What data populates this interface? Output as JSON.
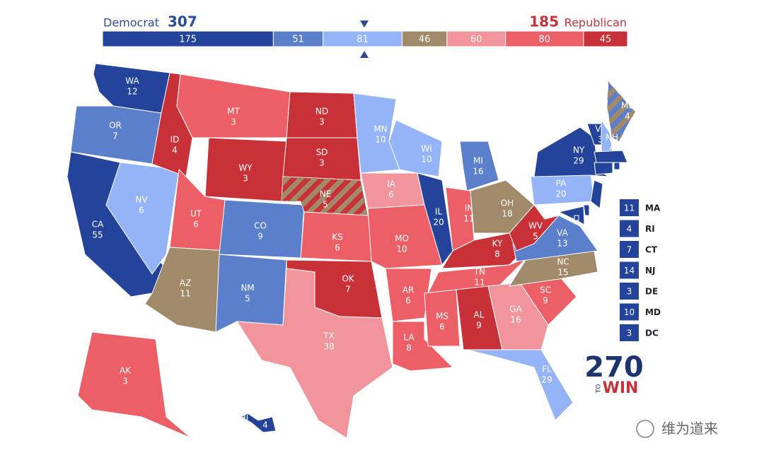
{
  "header": {
    "dem_label": "Democrat",
    "dem_total": 307,
    "rep_total": 185,
    "rep_label": "Republican"
  },
  "bar": [
    {
      "value": 175,
      "color": "#24449b"
    },
    {
      "value": 51,
      "color": "#5b7fca"
    },
    {
      "value": 81,
      "color": "#95b4f7"
    },
    {
      "value": 46,
      "color": "#a08a6a"
    },
    {
      "value": 60,
      "color": "#f2949b"
    },
    {
      "value": 80,
      "color": "#ec5f66"
    },
    {
      "value": 45,
      "color": "#c93138"
    }
  ],
  "bar_total": 538,
  "states": [
    {
      "abbr": "WA",
      "votes": 12,
      "color": "#24449b"
    },
    {
      "abbr": "OR",
      "votes": 7,
      "color": "#5b7fca"
    },
    {
      "abbr": "CA",
      "votes": 55,
      "color": "#24449b"
    },
    {
      "abbr": "NV",
      "votes": 6,
      "color": "#95b4f7"
    },
    {
      "abbr": "ID",
      "votes": 4,
      "color": "#c93138"
    },
    {
      "abbr": "MT",
      "votes": 3,
      "color": "#ec5f66"
    },
    {
      "abbr": "WY",
      "votes": 3,
      "color": "#c93138"
    },
    {
      "abbr": "UT",
      "votes": 6,
      "color": "#ec5f66"
    },
    {
      "abbr": "AZ",
      "votes": 11,
      "color": "#a08a6a"
    },
    {
      "abbr": "CO",
      "votes": 9,
      "color": "#5b7fca"
    },
    {
      "abbr": "NM",
      "votes": 5,
      "color": "#5b7fca"
    },
    {
      "abbr": "ND",
      "votes": 3,
      "color": "#c93138"
    },
    {
      "abbr": "SD",
      "votes": 3,
      "color": "#c93138"
    },
    {
      "abbr": "NE",
      "votes": 5,
      "color": "#c93138",
      "stripe_color": "#a08a6a"
    },
    {
      "abbr": "KS",
      "votes": 6,
      "color": "#ec5f66"
    },
    {
      "abbr": "OK",
      "votes": 7,
      "color": "#c93138"
    },
    {
      "abbr": "TX",
      "votes": 38,
      "color": "#f2949b"
    },
    {
      "abbr": "MN",
      "votes": 10,
      "color": "#95b4f7"
    },
    {
      "abbr": "IA",
      "votes": 6,
      "color": "#f2949b"
    },
    {
      "abbr": "MO",
      "votes": 10,
      "color": "#ec5f66"
    },
    {
      "abbr": "AR",
      "votes": 6,
      "color": "#ec5f66"
    },
    {
      "abbr": "LA",
      "votes": 8,
      "color": "#ec5f66"
    },
    {
      "abbr": "WI",
      "votes": 10,
      "color": "#95b4f7"
    },
    {
      "abbr": "IL",
      "votes": 20,
      "color": "#24449b"
    },
    {
      "abbr": "MI",
      "votes": 16,
      "color": "#5b7fca"
    },
    {
      "abbr": "IN",
      "votes": 11,
      "color": "#ec5f66"
    },
    {
      "abbr": "OH",
      "votes": 18,
      "color": "#a08a6a"
    },
    {
      "abbr": "KY",
      "votes": 8,
      "color": "#c93138"
    },
    {
      "abbr": "TN",
      "votes": 11,
      "color": "#ec5f66"
    },
    {
      "abbr": "MS",
      "votes": 6,
      "color": "#ec5f66"
    },
    {
      "abbr": "AL",
      "votes": 9,
      "color": "#c93138"
    },
    {
      "abbr": "GA",
      "votes": 16,
      "color": "#f2949b"
    },
    {
      "abbr": "FL",
      "votes": 29,
      "color": "#95b4f7"
    },
    {
      "abbr": "SC",
      "votes": 9,
      "color": "#ec5f66"
    },
    {
      "abbr": "NC",
      "votes": 15,
      "color": "#a08a6a"
    },
    {
      "abbr": "VA",
      "votes": 13,
      "color": "#5b7fca"
    },
    {
      "abbr": "WV",
      "votes": 5,
      "color": "#c93138"
    },
    {
      "abbr": "PA",
      "votes": 20,
      "color": "#95b4f7"
    },
    {
      "abbr": "NY",
      "votes": 29,
      "color": "#24449b"
    },
    {
      "abbr": "ME",
      "votes": 4,
      "color": "#5b7fca",
      "stripe_color": "#a08a6a"
    },
    {
      "abbr": "VT",
      "votes": 3,
      "color": "#24449b"
    },
    {
      "abbr": "NH",
      "votes": 4,
      "color": "#95b4f7"
    },
    {
      "abbr": "AK",
      "votes": 3,
      "color": "#ec5f66"
    },
    {
      "abbr": "HI",
      "votes": 4,
      "color": "#24449b"
    }
  ],
  "small_states": [
    {
      "votes": 11,
      "abbr": "MA",
      "color": "#24449b"
    },
    {
      "votes": 4,
      "abbr": "RI",
      "color": "#24449b"
    },
    {
      "votes": 7,
      "abbr": "CT",
      "color": "#24449b"
    },
    {
      "votes": 14,
      "abbr": "NJ",
      "color": "#24449b"
    },
    {
      "votes": 3,
      "abbr": "DE",
      "color": "#24449b"
    },
    {
      "votes": 10,
      "abbr": "MD",
      "color": "#24449b"
    },
    {
      "votes": 3,
      "abbr": "DC",
      "color": "#24449b"
    }
  ],
  "logo": {
    "number": "270",
    "to": "TO",
    "win": "WIN"
  },
  "watermark": "维为道来"
}
